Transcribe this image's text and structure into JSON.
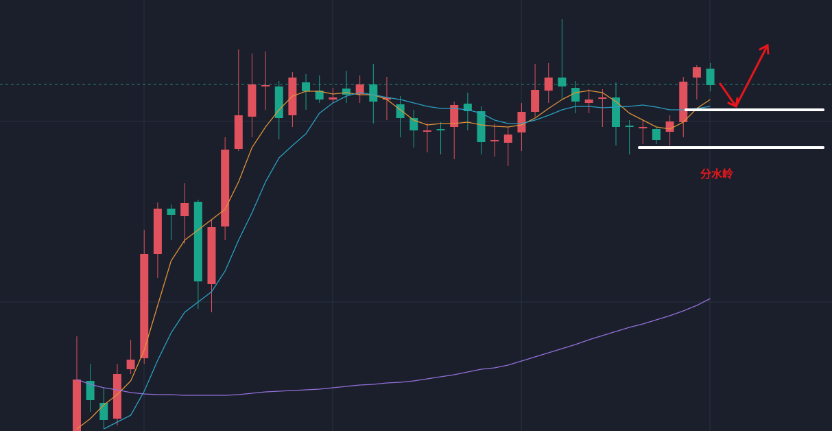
{
  "chart_data": {
    "type": "candlestick",
    "ylim": [
      0,
      628
    ],
    "up_color": "#e0525e",
    "down_color": "#19a68b",
    "open": [
      0,
      73,
      41,
      18,
      90,
      106,
      258,
      324,
      313,
      334,
      214,
      298,
      411,
      458,
      502,
      502,
      460,
      508,
      496,
      483,
      499,
      491,
      505,
      483,
      476,
      456,
      436,
      440,
      443,
      477,
      466,
      422,
      420,
      435,
      465,
      496,
      515,
      500,
      478,
      484,
      486,
      445,
      441,
      440,
      436,
      450,
      515,
      528
    ],
    "high": [
      138,
      98,
      63,
      98,
      133,
      293,
      333,
      330,
      361,
      337,
      308,
      428,
      556,
      550,
      553,
      510,
      523,
      520,
      518,
      500,
      525,
      518,
      535,
      516,
      488,
      468,
      448,
      450,
      480,
      493,
      473,
      448,
      443,
      478,
      535,
      536,
      600,
      510,
      498,
      498,
      508,
      453,
      453,
      443,
      460,
      516,
      533,
      536
    ],
    "low": [
      0,
      28,
      3,
      8,
      83,
      98,
      223,
      278,
      273,
      178,
      173,
      278,
      408,
      428,
      468,
      425,
      443,
      468,
      478,
      478,
      478,
      478,
      448,
      453,
      428,
      413,
      406,
      403,
      396,
      438,
      403,
      400,
      386,
      408,
      458,
      478,
      483,
      463,
      463,
      443,
      416,
      403,
      418,
      418,
      416,
      428,
      483,
      495
    ],
    "close": [
      75,
      45,
      16,
      83,
      104,
      258,
      324,
      315,
      332,
      218,
      297,
      410,
      460,
      505,
      504,
      456,
      515,
      495,
      483,
      486,
      490,
      505,
      480,
      486,
      456,
      438,
      438,
      438,
      475,
      466,
      421,
      424,
      432,
      465,
      497,
      515,
      502,
      480,
      483,
      486,
      443,
      443,
      443,
      424,
      451,
      509,
      530,
      504
    ],
    "moving_averages": [
      {
        "color": "#e0943a",
        "values": [
          3,
          18,
          38,
          53,
          73,
          118,
          183,
          248,
          278,
          293,
          308,
          323,
          363,
          413,
          443,
          468,
          488,
          495,
          495,
          491,
          493,
          490,
          490,
          483,
          468,
          453,
          446,
          448,
          448,
          450,
          446,
          444,
          443,
          446,
          456,
          470,
          483,
          493,
          496,
          493,
          480,
          463,
          453,
          443,
          440,
          450,
          470,
          483
        ]
      },
      {
        "color": "#2ba0c4",
        "values": [
          null,
          null,
          3,
          13,
          23,
          58,
          103,
          143,
          173,
          188,
          203,
          233,
          278,
          318,
          363,
          398,
          416,
          433,
          463,
          478,
          488,
          493,
          490,
          486,
          483,
          478,
          473,
          470,
          470,
          468,
          463,
          453,
          448,
          448,
          453,
          460,
          468,
          473,
          473,
          471,
          472,
          473,
          475,
          472,
          468,
          468,
          470,
          473
        ]
      },
      {
        "color": "#9370db",
        "values": [
          75,
          68,
          63,
          60,
          56,
          54,
          53,
          53,
          52,
          52,
          52,
          52,
          53,
          55,
          57,
          58,
          59,
          60,
          61,
          63,
          65,
          67,
          68,
          70,
          71,
          73,
          76,
          79,
          82,
          86,
          90,
          92,
          96,
          102,
          108,
          114,
          120,
          126,
          133,
          139,
          145,
          151,
          156,
          162,
          168,
          175,
          183,
          193
        ]
      }
    ],
    "price_line": 505,
    "levels": [
      468,
      413
    ],
    "annotation": "分水岭"
  }
}
